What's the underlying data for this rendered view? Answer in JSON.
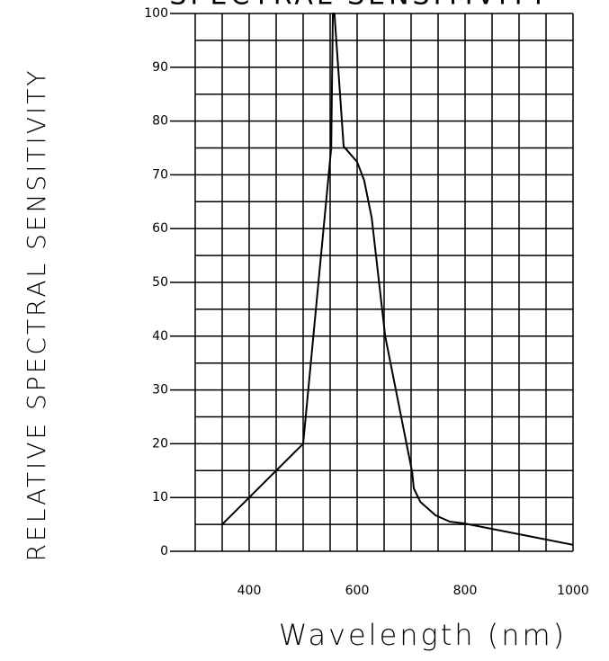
{
  "chart_data": {
    "type": "line",
    "title": "SPECTRAL SENSITIVITY",
    "x_label": "Wavelength (nm)",
    "y_label": "RELATIVE SPECTRAL SENSITIVITY",
    "x": [
      350,
      500,
      552,
      555,
      558,
      575,
      600,
      613,
      627,
      652,
      702,
      705,
      717,
      745,
      772,
      797,
      1000
    ],
    "values": [
      5,
      20,
      75,
      100,
      100,
      75.3,
      72.4,
      69,
      62,
      40,
      14.7,
      11.7,
      9.2,
      6.7,
      5.5,
      5.2,
      1.2
    ],
    "color": "#000000",
    "xlim": [
      300,
      1000
    ],
    "ylim": [
      0,
      100
    ],
    "xticks": [
      400,
      600,
      800,
      1000
    ],
    "yticks": [
      0,
      10,
      20,
      30,
      40,
      50,
      60,
      70,
      80,
      90,
      100
    ],
    "xgrid": [
      300,
      350,
      450,
      500,
      550,
      650,
      700,
      750,
      850,
      900,
      950
    ],
    "ygrid": [
      5,
      15,
      25,
      35,
      45,
      55,
      65,
      75,
      85,
      95
    ],
    "grid": true
  }
}
